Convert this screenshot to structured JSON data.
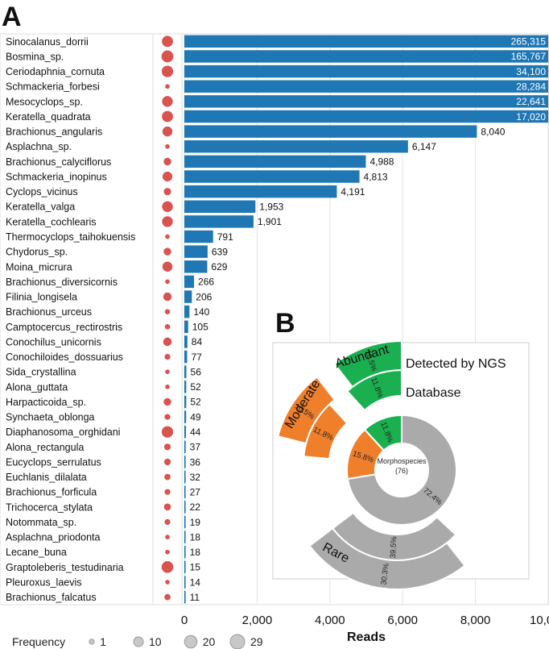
{
  "panel_a_label": "A",
  "panel_b_label": "B",
  "chart_data": [
    {
      "type": "bar",
      "orientation": "horizontal",
      "xlabel": "Reads",
      "xlim": [
        0,
        10000
      ],
      "x_ticks": [
        "0",
        "2,000",
        "4,000",
        "6,000",
        "8,000",
        "10,000"
      ],
      "x_tick_values": [
        0,
        2000,
        4000,
        6000,
        8000,
        10000
      ],
      "bar_color": "#1f77b4",
      "dot_color": "#d9534f",
      "categories": [
        "Sinocalanus_dorrii",
        "Bosmina_sp.",
        "Ceriodaphnia_cornuta",
        "Schmackeria_forbesi",
        "Mesocyclops_sp.",
        "Keratella_quadrata",
        "Brachionus_angularis",
        "Asplachna_sp.",
        "Brachionus_calyciflorus",
        "Schmackeria_inopinus",
        "Cyclops_vicinus",
        "Keratella_valga",
        "Keratella_cochlearis",
        "Thermocyclops_taihokuensis",
        "Chydorus_sp.",
        "Moina_micrura",
        "Brachionus_diversicornis",
        "Filinia_longisela",
        "Brachionus_urceus",
        "Camptocercus_rectirostris",
        "Conochilus_unicornis",
        "Conochiloides_dossuarius",
        "Sida_crystallina",
        "Alona_guttata",
        "Harpacticoida_sp.",
        "Synchaeta_oblonga",
        "Diaphanosoma_orghidani",
        "Alona_rectangula",
        "Eucyclops_serrulatus",
        "Euchlanis_dilalata",
        "Brachionus_forficula",
        "Trichocerca_stylata",
        "Notommata_sp.",
        "Asplachna_priodonta",
        "Lecane_buna",
        "Graptoleberis_testudinaria",
        "Pleuroxus_laevis",
        "Brachionus_falcatus"
      ],
      "values": [
        265315,
        165767,
        34100,
        28284,
        22641,
        17020,
        8040,
        6147,
        4988,
        4813,
        4191,
        1953,
        1901,
        791,
        639,
        629,
        266,
        206,
        140,
        105,
        84,
        77,
        56,
        52,
        52,
        49,
        44,
        37,
        36,
        32,
        27,
        22,
        19,
        18,
        18,
        15,
        14,
        11
      ],
      "value_labels": [
        "265,315",
        "165,767",
        "34,100",
        "28,284",
        "22,641",
        "17,020",
        "8,040",
        "6,147",
        "4,988",
        "4,813",
        "4,191",
        "1,953",
        "1,901",
        "791",
        "639",
        "629",
        "266",
        "206",
        "140",
        "105",
        "84",
        "77",
        "56",
        "52",
        "52",
        "49",
        "44",
        "37",
        "36",
        "32",
        "27",
        "22",
        "19",
        "18",
        "18",
        "15",
        "14",
        "11"
      ],
      "frequency": [
        24,
        29,
        26,
        1,
        22,
        24,
        18,
        1,
        8,
        17,
        7,
        22,
        22,
        1,
        8,
        18,
        1,
        11,
        2,
        2,
        11,
        3,
        1,
        1,
        8,
        3,
        26,
        5,
        5,
        4,
        3,
        6,
        3,
        1,
        1,
        28,
        1,
        4
      ],
      "frequency_legend": {
        "title": "Frequency",
        "levels": [
          1,
          10,
          20,
          29
        ],
        "labels": [
          "1",
          "10",
          "20",
          "29"
        ]
      }
    },
    {
      "type": "sunburst",
      "center_label": "Morphospecies",
      "center_count": "(76)",
      "inner_ring": [
        {
          "name": "Abundant",
          "value": 11.8,
          "label": "11.8%",
          "color": "#1ab04f"
        },
        {
          "name": "Moderate",
          "value": 15.8,
          "label": "15.8%",
          "color": "#f07f2c"
        },
        {
          "name": "Rare",
          "value": 72.4,
          "label": "72.4%",
          "color": "#aaaaaa"
        }
      ],
      "middle_ring": [
        {
          "name": "Abundant",
          "value": 11.8,
          "label": "11.8%",
          "color": "#1ab04f"
        },
        {
          "name": "Moderate",
          "value": 11.8,
          "label": "11.8%",
          "color": "#f07f2c"
        },
        {
          "name": "Rare",
          "value": 39.5,
          "label": "39.5%",
          "color": "#aaaaaa"
        }
      ],
      "outer_ring": [
        {
          "name": "Abundant",
          "value": 10.5,
          "label": "10.5%",
          "color": "#1ab04f"
        },
        {
          "name": "Moderate",
          "value": 10.5,
          "label": "10.5%",
          "color": "#f07f2c"
        },
        {
          "name": "Rare",
          "value": 30.3,
          "label": "30.3%",
          "color": "#aaaaaa"
        }
      ],
      "category_labels": [
        "Abundant",
        "Moderate",
        "Rare"
      ],
      "legend": [
        "Detected by NGS",
        "Database"
      ]
    }
  ]
}
